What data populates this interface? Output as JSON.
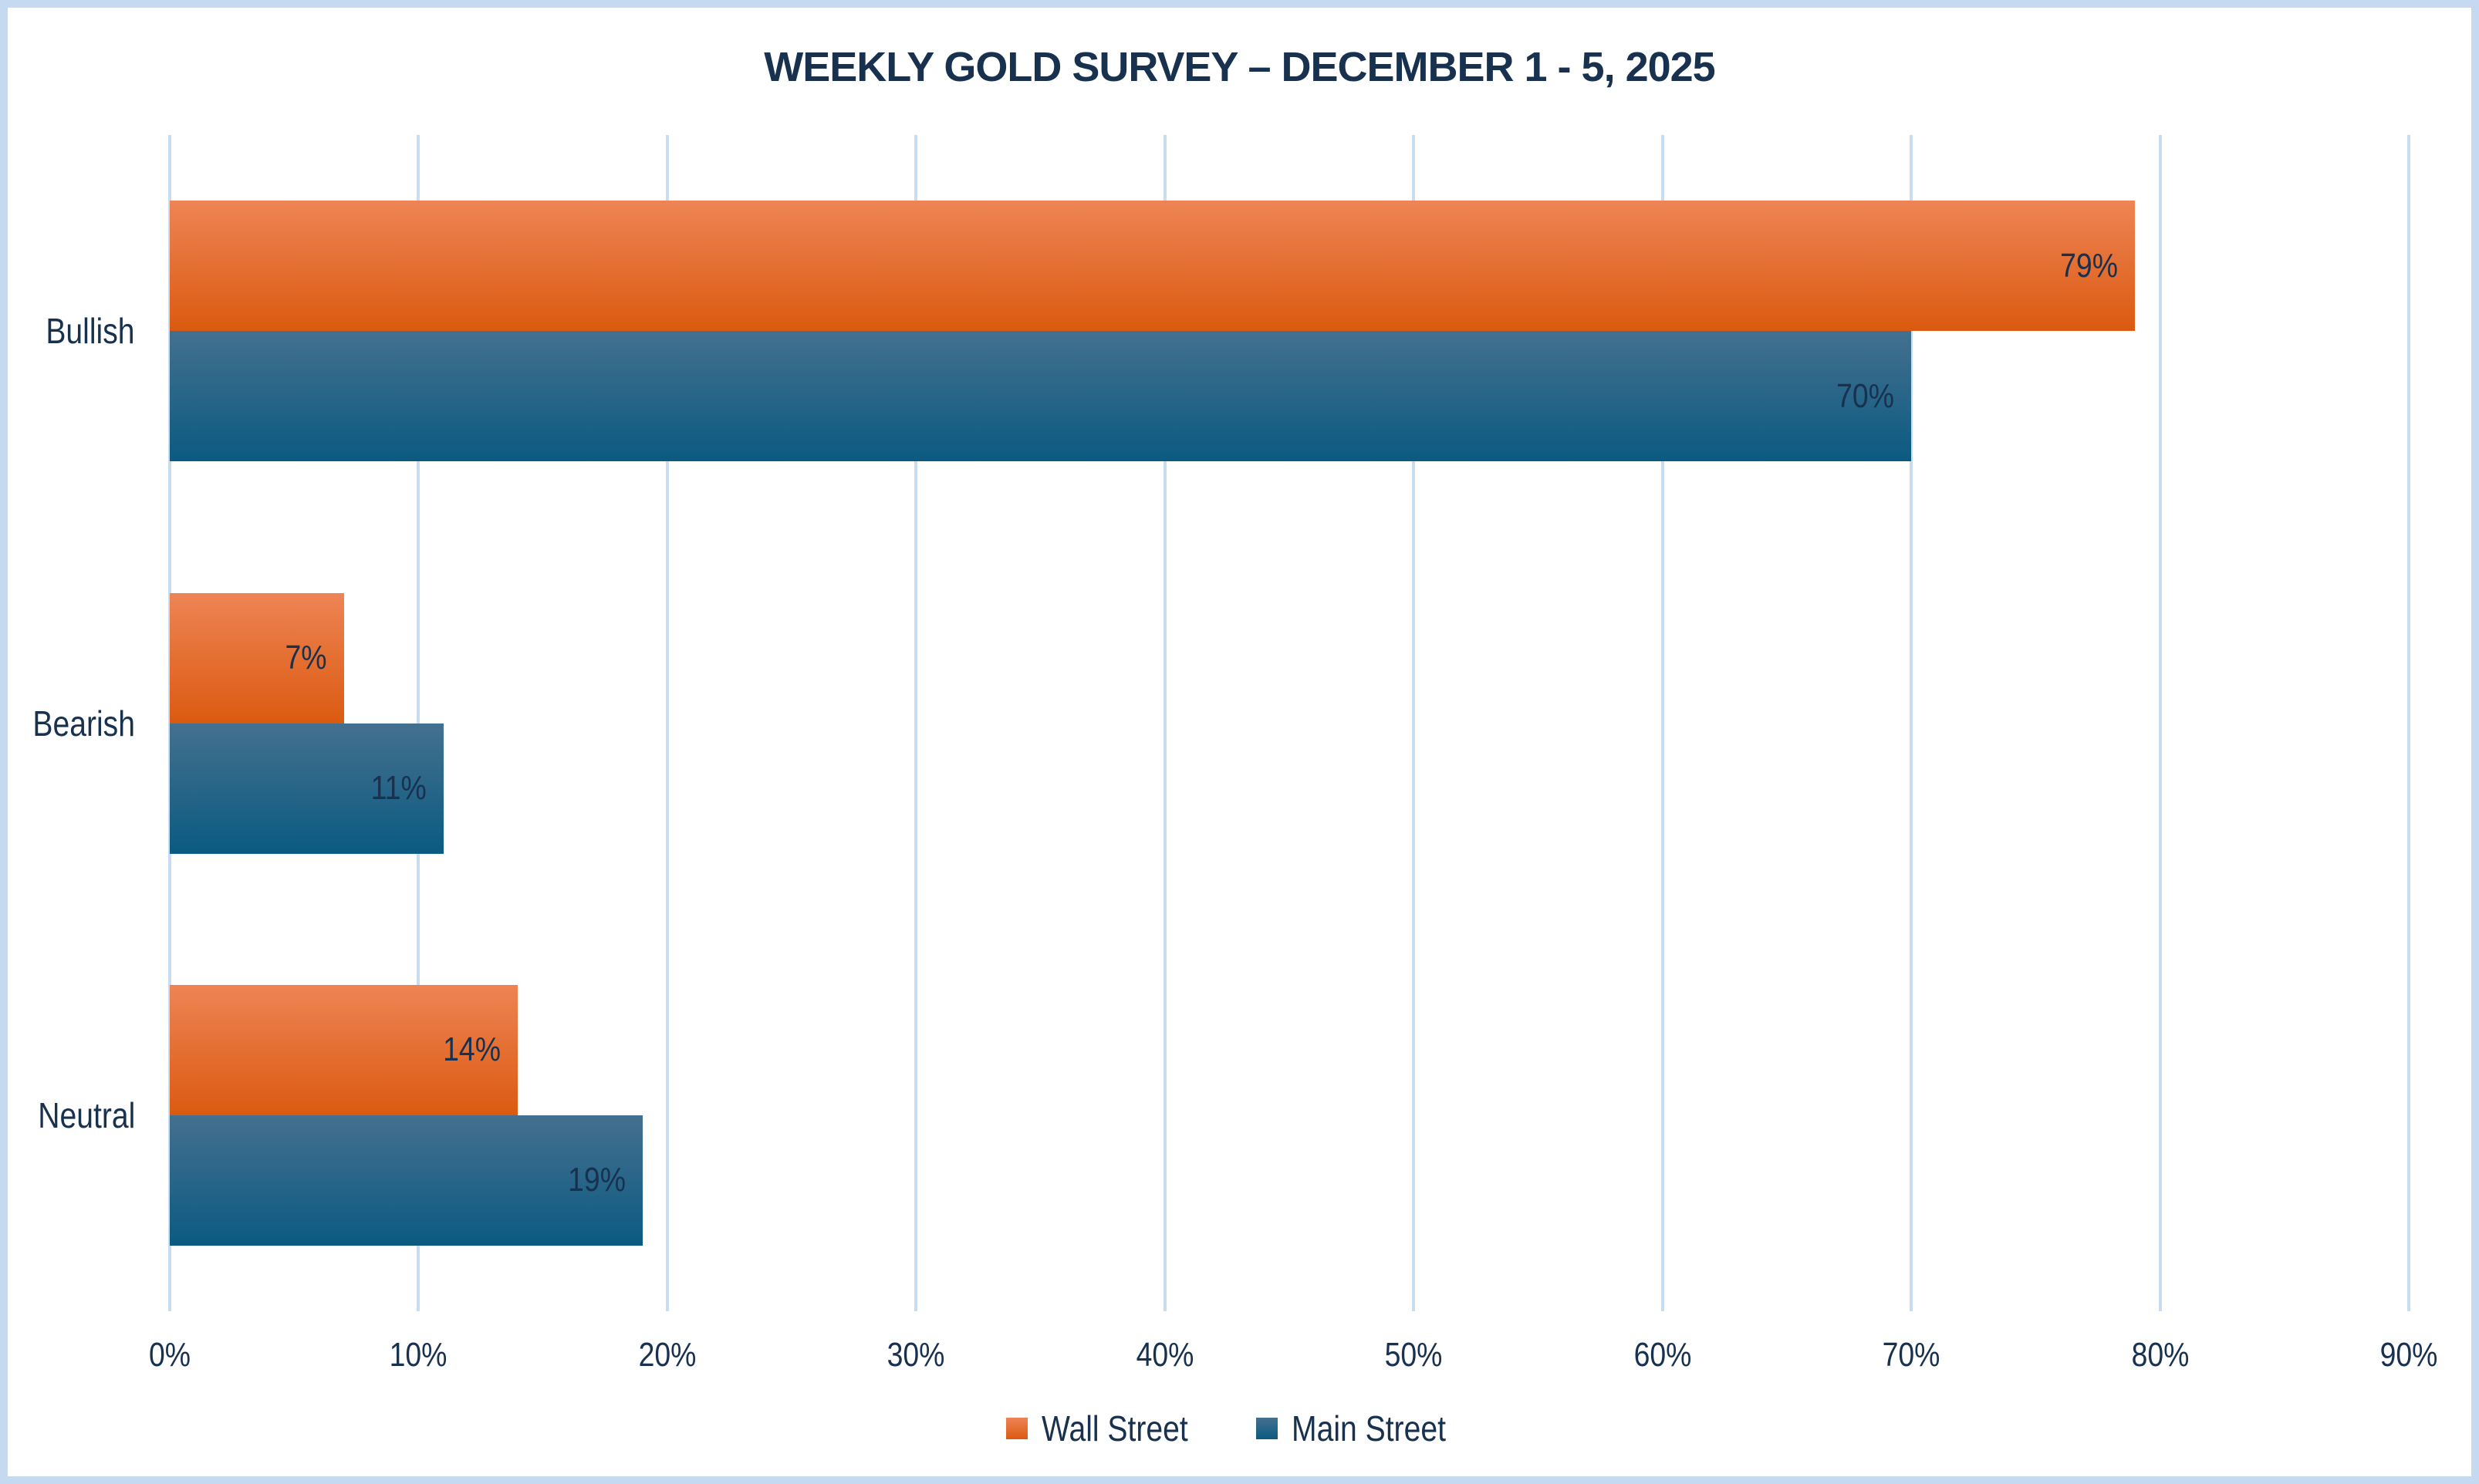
{
  "chart_data": {
    "type": "bar",
    "orientation": "horizontal",
    "title": "WEEKLY GOLD SURVEY – DECEMBER 1 - 5, 2025",
    "categories": [
      "Bullish",
      "Bearish",
      "Neutral"
    ],
    "series": [
      {
        "name": "Wall Street",
        "values": [
          79,
          7,
          14
        ],
        "color_top": "#ee8455",
        "color_bottom": "#db5a10"
      },
      {
        "name": "Main Street",
        "values": [
          70,
          11,
          19
        ],
        "color_top": "#44708f",
        "color_bottom": "#0b5a81"
      }
    ],
    "value_suffix": "%",
    "xlabel": "",
    "ylabel": "",
    "xlim": [
      0,
      90
    ],
    "x_ticks": [
      "0%",
      "10%",
      "20%",
      "30%",
      "40%",
      "50%",
      "60%",
      "70%",
      "80%",
      "90%"
    ],
    "grid": true,
    "legend_position": "bottom",
    "data_labels": "inside-end"
  },
  "colors": {
    "text": "#17314f",
    "gridline": "#c9ddf1",
    "border": "#c5daf0",
    "background": "#ffffff"
  }
}
